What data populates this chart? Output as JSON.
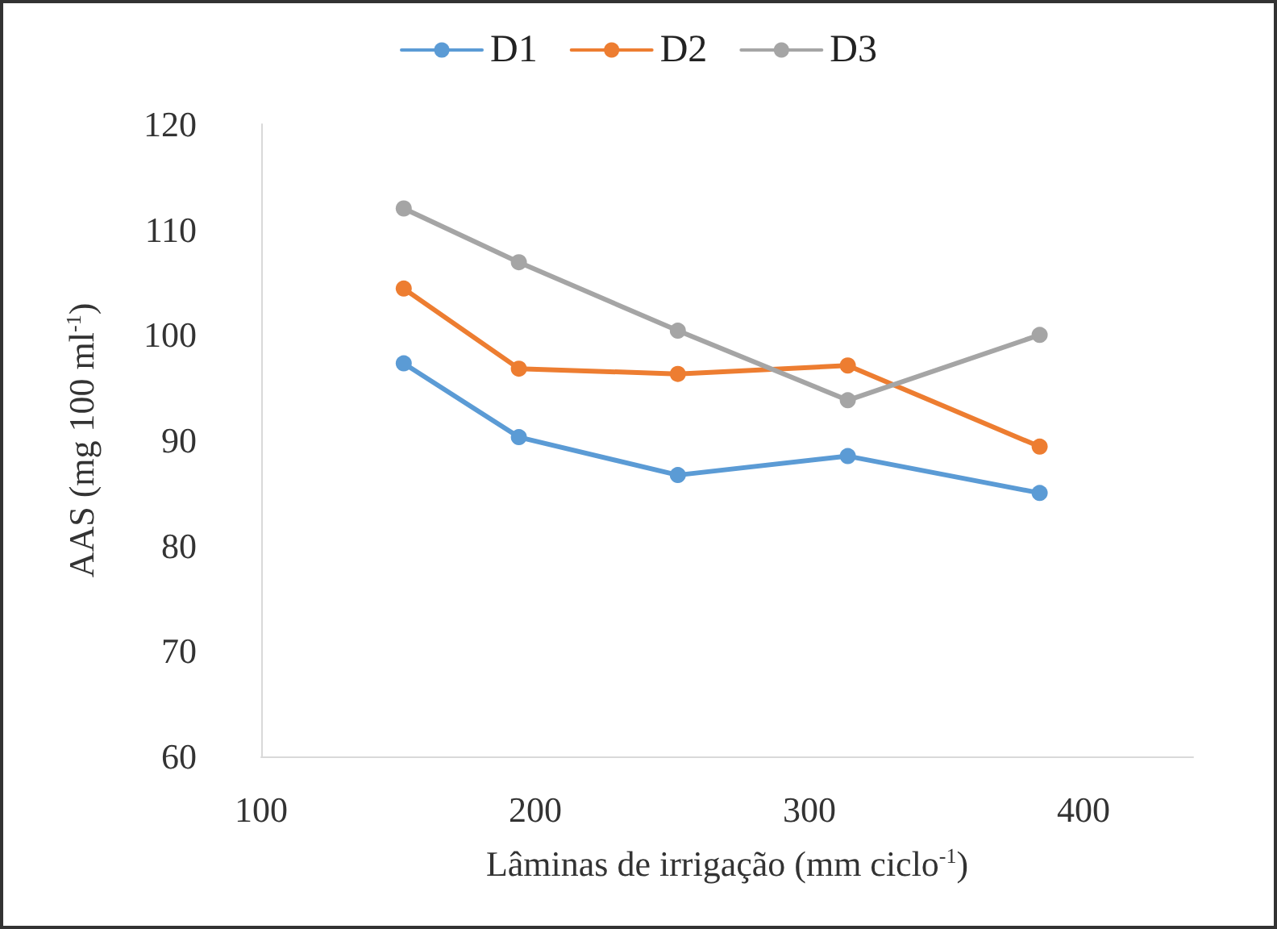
{
  "chart_data": {
    "type": "line",
    "xlabel": "Lâminas de irrigação (mm ciclo$^{-1}$)",
    "ylabel": "AAS (mg 100 ml$^{-1}$)",
    "x": [
      152,
      194,
      252,
      314,
      384
    ],
    "series": [
      {
        "name": "D1",
        "color": "#5b9bd5",
        "values": [
          97.3,
          90.3,
          86.7,
          88.5,
          85.0
        ]
      },
      {
        "name": "D2",
        "color": "#ed7d31",
        "values": [
          104.4,
          96.8,
          96.3,
          97.1,
          89.4
        ]
      },
      {
        "name": "D3",
        "color": "#a5a5a5",
        "values": [
          112.0,
          106.9,
          100.4,
          93.8,
          100.0
        ]
      }
    ],
    "xlim": [
      100,
      440
    ],
    "xticks": [
      100,
      200,
      300,
      400
    ],
    "ylim": [
      60,
      120
    ],
    "yticks": [
      60,
      70,
      80,
      90,
      100,
      110,
      120
    ],
    "grid": false,
    "legend": "top",
    "marker": "circle",
    "line_style": "solid"
  }
}
